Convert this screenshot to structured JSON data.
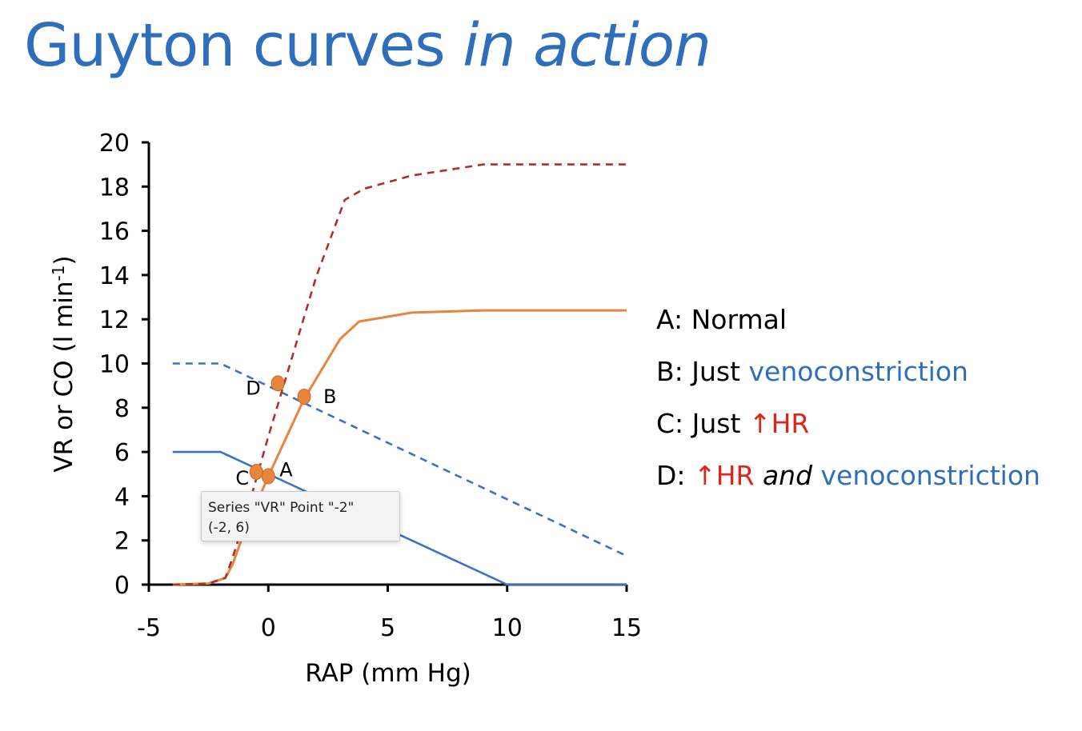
{
  "title": {
    "main": "Guyton curves",
    "italic": "in action"
  },
  "chart_data": {
    "type": "line",
    "xlabel": "RAP (mm Hg)",
    "ylabel_main": "VR or CO (l min",
    "ylabel_sup": "-1",
    "ylabel_close": ")",
    "xlim": [
      -5,
      15
    ],
    "ylim": [
      0,
      20
    ],
    "xticks": [
      -5,
      0,
      5,
      10,
      15
    ],
    "yticks": [
      0,
      2,
      4,
      6,
      8,
      10,
      12,
      14,
      16,
      18,
      20
    ],
    "series": [
      {
        "name": "VR",
        "style": "solid",
        "color": "#3a72c4",
        "x": [
          -4,
          -2,
          10,
          15
        ],
        "y": [
          6,
          6,
          0,
          0
        ]
      },
      {
        "name": "VR venoconstriction",
        "style": "dashed",
        "color": "#3a72c4",
        "x": [
          -4,
          -2,
          15
        ],
        "y": [
          10,
          10,
          1.3
        ]
      },
      {
        "name": "CO",
        "style": "solid",
        "color": "#e8853d",
        "x": [
          -4,
          -2.5,
          -1.8,
          -1.5,
          -1,
          0,
          1.5,
          3,
          3.8,
          6,
          9,
          15
        ],
        "y": [
          0,
          0.05,
          0.3,
          0.9,
          2.4,
          4.9,
          8.4,
          11.1,
          11.9,
          12.3,
          12.4,
          12.4
        ]
      },
      {
        "name": "CO increased HR",
        "style": "dashed",
        "color": "#b03028",
        "x": [
          -4,
          -2.5,
          -1.8,
          -1.5,
          -1,
          0,
          1,
          2,
          3.2,
          4,
          6,
          9,
          11,
          15
        ],
        "y": [
          0,
          0.05,
          0.3,
          1.2,
          2.9,
          6.7,
          10.3,
          13.9,
          17.4,
          17.9,
          18.5,
          19.0,
          19.0,
          19.0
        ]
      }
    ],
    "points": [
      {
        "label": "A",
        "x": 0,
        "y": 4.9
      },
      {
        "label": "B",
        "x": 1.5,
        "y": 8.5
      },
      {
        "label": "C",
        "x": -0.5,
        "y": 5.1
      },
      {
        "label": "D",
        "x": 0.4,
        "y": 9.1
      }
    ],
    "point_color": "#e8853d"
  },
  "legend": {
    "a_prefix": "A: Normal",
    "b_prefix": "B: Just ",
    "b_blue": "venoconstriction",
    "c_prefix": "C: Just ",
    "c_arrow": "↑",
    "c_red": "HR",
    "d_prefix": "D: ",
    "d_arrow": "↑",
    "d_red": "HR",
    "d_and": "and",
    "d_blue": "venoconstriction"
  },
  "tooltip": {
    "line1": "Series \"VR\" Point \"-2\"",
    "line2": "(-2, 6)"
  }
}
